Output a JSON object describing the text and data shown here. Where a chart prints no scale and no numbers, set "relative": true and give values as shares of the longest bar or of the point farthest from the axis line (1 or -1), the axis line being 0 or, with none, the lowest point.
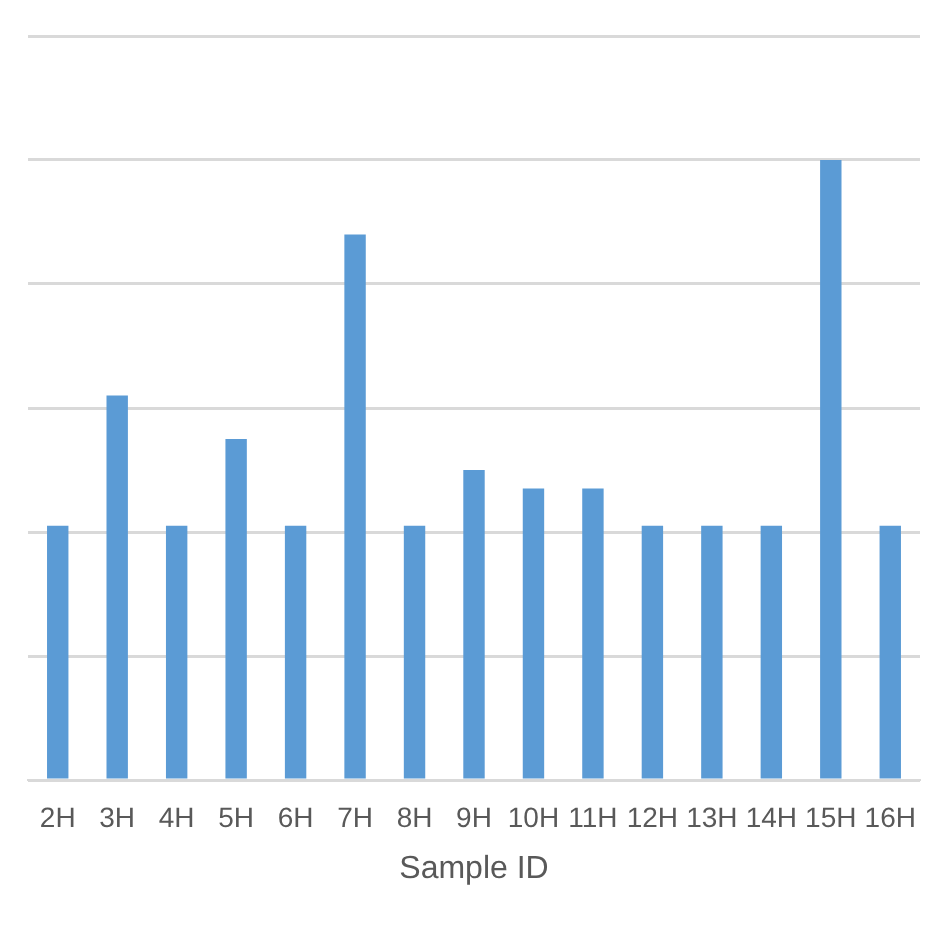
{
  "chart_data": {
    "type": "bar",
    "xlabel": "Sample ID",
    "relative": true,
    "grid": "y",
    "legend": false,
    "categories": [
      "2H",
      "3H",
      "4H",
      "5H",
      "6H",
      "7H",
      "8H",
      "9H",
      "10H",
      "11H",
      "12H",
      "13H",
      "14H",
      "15H",
      "16H"
    ],
    "series": [
      {
        "color": "#5b9bd5",
        "values": [
          0.41,
          0.62,
          0.41,
          0.55,
          0.41,
          0.88,
          0.41,
          0.5,
          0.47,
          0.47,
          0.41,
          0.41,
          0.41,
          1,
          0.41
        ]
      }
    ]
  }
}
